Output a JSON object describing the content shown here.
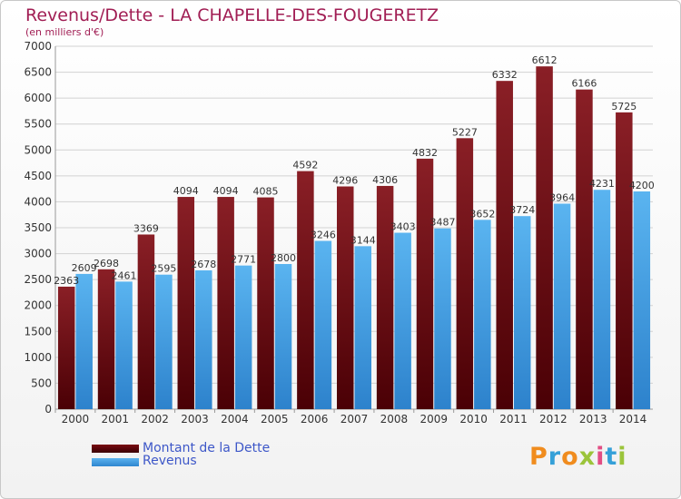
{
  "chart_data": {
    "type": "bar",
    "title": "Revenus/Dette - LA CHAPELLE-DES-FOUGERETZ",
    "subtitle": "(en milliers d'€)",
    "categories": [
      "2000",
      "2001",
      "2002",
      "2003",
      "2004",
      "2005",
      "2006",
      "2007",
      "2008",
      "2009",
      "2010",
      "2011",
      "2012",
      "2013",
      "2014"
    ],
    "series": [
      {
        "name": "Montant de la Dette",
        "values": [
          2363,
          2698,
          3369,
          4094,
          4094,
          4085,
          4592,
          4296,
          4306,
          4832,
          5227,
          6332,
          6612,
          6166,
          5725
        ]
      },
      {
        "name": "Revenus",
        "values": [
          2609,
          2461,
          2595,
          2678,
          2771,
          2800,
          3246,
          3144,
          3403,
          3487,
          3652,
          3724,
          3964,
          4231,
          4200
        ]
      }
    ],
    "ylim": [
      0,
      7000
    ],
    "yticks": [
      0,
      500,
      1000,
      1500,
      2000,
      2500,
      3000,
      3500,
      4000,
      4500,
      5000,
      5500,
      6000,
      6500,
      7000
    ],
    "grid": true,
    "legend": "bottom-left"
  },
  "colors": {
    "dette": "#6e0a10",
    "revenus": "#4aa3e6",
    "title": "#a11e54",
    "legend_text": "#3d57c8"
  },
  "legend": {
    "dette_label": "Montant de la Dette",
    "revenus_label": "Revenus"
  },
  "logo": {
    "text": "Proxiti"
  }
}
